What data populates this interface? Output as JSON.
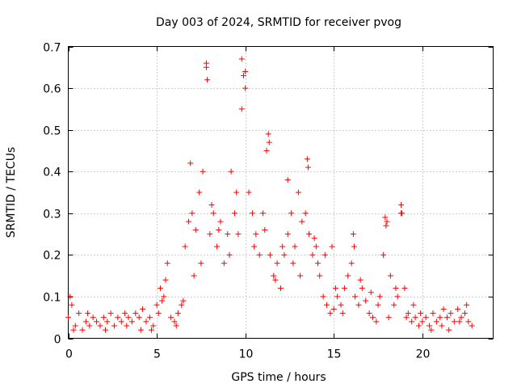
{
  "chart_data": {
    "type": "scatter",
    "title": "Day 003 of 2024, SRMTID for receiver pvog",
    "xlabel": "GPS time / hours",
    "ylabel": "SRMTID / TECUs",
    "xlim": [
      0,
      24
    ],
    "ylim": [
      0,
      0.7
    ],
    "xticks": [
      0,
      5,
      10,
      15,
      20
    ],
    "yticks": [
      0,
      0.1,
      0.2,
      0.3,
      0.4,
      0.5,
      0.6,
      0.7
    ],
    "grid": true,
    "marker": "+",
    "color": "#ff0000",
    "series": [
      {
        "name": "SRMTID",
        "x": [
          0.0,
          0.2,
          0.4,
          0.6,
          0.8,
          1.0,
          1.2,
          1.4,
          1.6,
          1.8,
          2.0,
          2.2,
          2.4,
          2.6,
          2.8,
          3.0,
          3.2,
          3.4,
          3.6,
          3.8,
          4.0,
          4.2,
          4.4,
          4.6,
          4.8,
          5.0,
          5.2,
          5.4,
          5.6,
          5.8,
          6.0,
          6.2,
          6.4,
          6.6,
          6.8,
          7.0,
          7.2,
          7.4,
          7.6,
          7.8,
          8.0,
          8.2,
          8.4,
          8.6,
          8.8,
          9.0,
          9.2,
          9.4,
          9.6,
          9.8,
          10.0,
          10.2,
          10.4,
          10.6,
          10.8,
          11.0,
          11.2,
          11.4,
          11.6,
          11.8,
          12.0,
          12.2,
          12.4,
          12.6,
          12.8,
          13.0,
          13.2,
          13.4,
          13.6,
          13.8,
          14.0,
          14.2,
          14.4,
          14.6,
          14.8,
          15.0,
          15.2,
          15.4,
          15.6,
          15.8,
          16.0,
          16.2,
          16.4,
          16.6,
          16.8,
          17.0,
          17.2,
          17.4,
          17.6,
          17.8,
          18.0,
          18.2,
          18.4,
          18.6,
          18.8,
          19.0,
          19.2,
          19.4,
          19.6,
          19.8,
          20.0,
          20.2,
          20.4,
          20.6,
          20.8,
          21.0,
          21.2,
          21.4,
          21.6,
          21.8,
          22.0,
          22.2,
          22.4,
          22.6,
          22.8,
          7.8,
          7.85,
          9.8,
          9.9,
          10.0,
          11.3,
          11.35,
          13.5,
          13.55,
          16.1,
          16.15,
          17.9,
          17.95,
          18.8,
          18.85,
          6.9,
          12.4,
          14.9,
          0.1,
          0.3,
          1.1,
          2.1,
          3.3,
          4.1,
          4.7,
          5.1,
          5.3,
          5.5,
          6.1,
          6.5,
          7.1,
          7.5,
          8.1,
          8.5,
          9.1,
          9.5,
          10.5,
          11.1,
          11.7,
          12.1,
          12.7,
          13.1,
          13.9,
          14.1,
          14.5,
          15.1,
          15.5,
          16.5,
          17.1,
          17.5,
          18.1,
          18.5,
          19.1,
          19.5,
          19.9,
          20.5,
          21.1,
          21.5,
          22.1,
          22.5
        ],
        "y": [
          0.05,
          0.08,
          0.03,
          0.06,
          0.02,
          0.04,
          0.03,
          0.05,
          0.04,
          0.03,
          0.05,
          0.04,
          0.06,
          0.03,
          0.05,
          0.04,
          0.06,
          0.05,
          0.04,
          0.06,
          0.05,
          0.07,
          0.04,
          0.05,
          0.03,
          0.08,
          0.12,
          0.1,
          0.18,
          0.05,
          0.04,
          0.06,
          0.08,
          0.22,
          0.28,
          0.3,
          0.26,
          0.35,
          0.4,
          0.65,
          0.25,
          0.3,
          0.22,
          0.28,
          0.18,
          0.25,
          0.4,
          0.3,
          0.25,
          0.55,
          0.6,
          0.35,
          0.3,
          0.25,
          0.2,
          0.3,
          0.45,
          0.2,
          0.15,
          0.18,
          0.12,
          0.2,
          0.25,
          0.3,
          0.22,
          0.35,
          0.28,
          0.3,
          0.25,
          0.2,
          0.22,
          0.15,
          0.1,
          0.08,
          0.06,
          0.07,
          0.1,
          0.08,
          0.12,
          0.15,
          0.18,
          0.1,
          0.08,
          0.12,
          0.09,
          0.06,
          0.05,
          0.04,
          0.1,
          0.2,
          0.28,
          0.15,
          0.08,
          0.1,
          0.3,
          0.12,
          0.06,
          0.04,
          0.05,
          0.03,
          0.04,
          0.05,
          0.03,
          0.06,
          0.04,
          0.05,
          0.07,
          0.05,
          0.06,
          0.04,
          0.07,
          0.05,
          0.06,
          0.04,
          0.03,
          0.66,
          0.62,
          0.67,
          0.63,
          0.64,
          0.49,
          0.47,
          0.43,
          0.41,
          0.25,
          0.22,
          0.29,
          0.27,
          0.32,
          0.3,
          0.42,
          0.38,
          0.22,
          0.1,
          0.02,
          0.06,
          0.02,
          0.03,
          0.02,
          0.02,
          0.06,
          0.09,
          0.14,
          0.03,
          0.09,
          0.15,
          0.18,
          0.32,
          0.26,
          0.2,
          0.35,
          0.22,
          0.26,
          0.14,
          0.22,
          0.18,
          0.15,
          0.24,
          0.18,
          0.2,
          0.12,
          0.06,
          0.14,
          0.11,
          0.08,
          0.05,
          0.12,
          0.05,
          0.08,
          0.06,
          0.02,
          0.03,
          0.02,
          0.04,
          0.08
        ]
      }
    ]
  }
}
